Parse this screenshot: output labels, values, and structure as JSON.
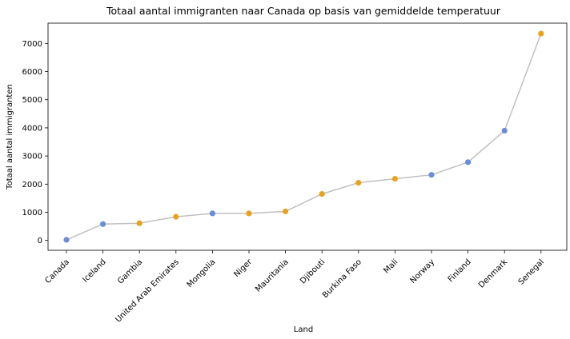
{
  "chart_data": {
    "type": "line",
    "title": "Totaal aantal immigranten naar Canada op basis van gemiddelde temperatuur",
    "xlabel": "Land",
    "ylabel": "Totaal aantal immigranten",
    "categories": [
      "Canada",
      "Iceland",
      "Gambia",
      "United Arab Emirates",
      "Mongolia",
      "Niger",
      "Mauritania",
      "Djibouti",
      "Burkina Faso",
      "Mali",
      "Norway",
      "Finland",
      "Denmark",
      "Senegal"
    ],
    "values": [
      20,
      580,
      610,
      840,
      960,
      960,
      1030,
      1650,
      2050,
      2190,
      2330,
      2780,
      3900,
      7350
    ],
    "point_groups": [
      "cold",
      "cold",
      "warm",
      "warm",
      "cold",
      "warm",
      "warm",
      "warm",
      "warm",
      "warm",
      "cold",
      "cold",
      "cold",
      "warm"
    ],
    "yticks": [
      0,
      1000,
      2000,
      3000,
      4000,
      5000,
      6000,
      7000
    ],
    "ylim": [
      -350,
      7720
    ],
    "grid": false,
    "colors": {
      "line": "#c0c0c0",
      "cold": "#6a8fd6",
      "warm": "#e8a21e",
      "axis": "#000000"
    }
  }
}
